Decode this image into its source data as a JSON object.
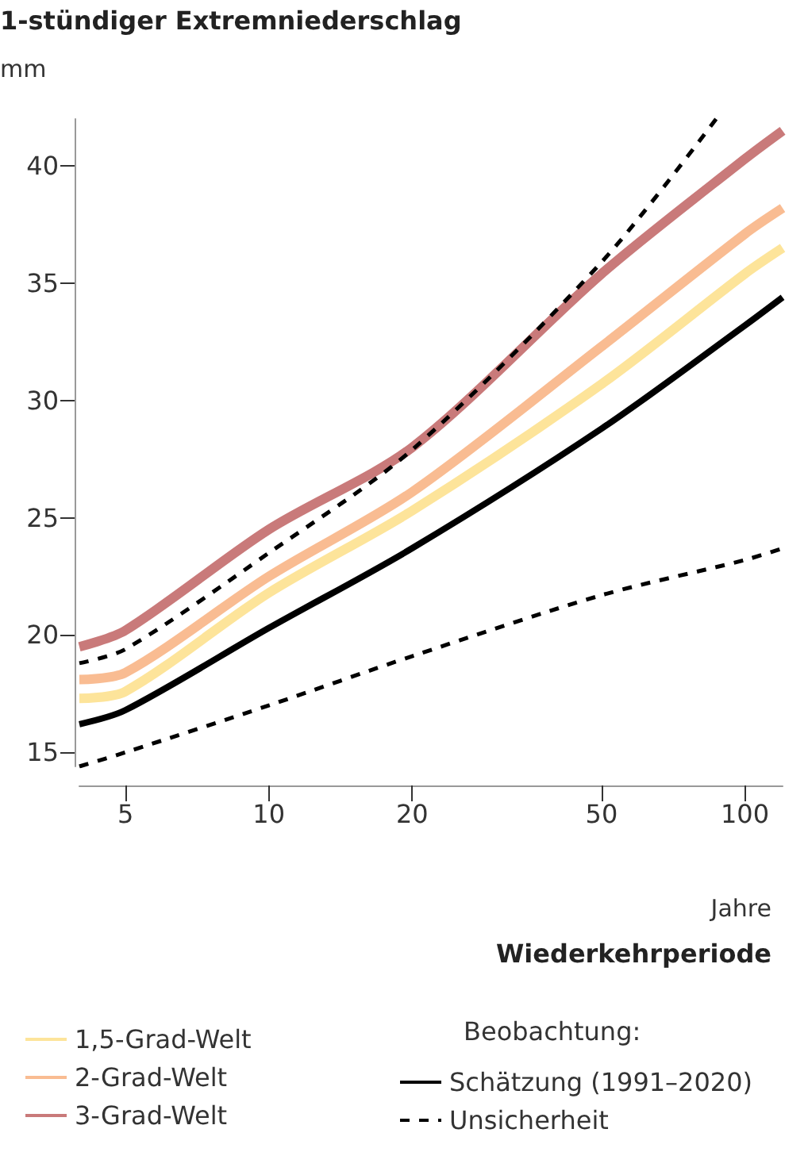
{
  "chart_data": {
    "type": "line",
    "title": "1-stündiger Extremniederschlag",
    "ylabel": "mm",
    "xlabel": "Wiederkehrperiode",
    "annotations": [
      "Jahre",
      "Beobachtung:"
    ],
    "x": [
      4,
      5,
      10,
      20,
      50,
      100,
      120
    ],
    "log": "x",
    "xlim": [
      4,
      120
    ],
    "xticks": [
      5,
      10,
      20,
      50,
      100
    ],
    "ylim": [
      14.4,
      42.0
    ],
    "yticks": [
      15,
      20,
      25,
      30,
      35,
      40
    ],
    "grid": false,
    "legend": "bottom",
    "marker": "none",
    "series": [
      {
        "name": "1,5-Grad-Welt",
        "color": "#fde49a",
        "line_style": "solid",
        "values": [
          17.3,
          17.6,
          21.8,
          25.3,
          30.7,
          35.4,
          36.5
        ]
      },
      {
        "name": "2-Grad-Welt",
        "color": "#f9bc92",
        "line_style": "solid",
        "values": [
          18.1,
          18.4,
          22.5,
          26.1,
          32.3,
          37.1,
          38.2
        ]
      },
      {
        "name": "3-Grad-Welt",
        "color": "#c97a7a",
        "line_style": "solid",
        "values": [
          19.5,
          20.2,
          24.5,
          28.0,
          35.4,
          40.3,
          41.5
        ]
      },
      {
        "name": "Schätzung (1991–2020)",
        "color": "#000000",
        "line_style": "solid",
        "values": [
          16.2,
          16.8,
          20.3,
          23.7,
          28.8,
          33.2,
          34.4
        ]
      },
      {
        "name": "Unsicherheit",
        "color": "#000000",
        "line_style": "dashed",
        "x": [
          4,
          5,
          10,
          20,
          50,
          87
        ],
        "values": [
          18.8,
          19.4,
          23.5,
          27.9,
          35.9,
          42.0
        ]
      },
      {
        "color": "#000000",
        "line_style": "dashed",
        "values": [
          14.4,
          15.0,
          17.0,
          19.1,
          21.7,
          23.2,
          23.7
        ]
      }
    ]
  }
}
